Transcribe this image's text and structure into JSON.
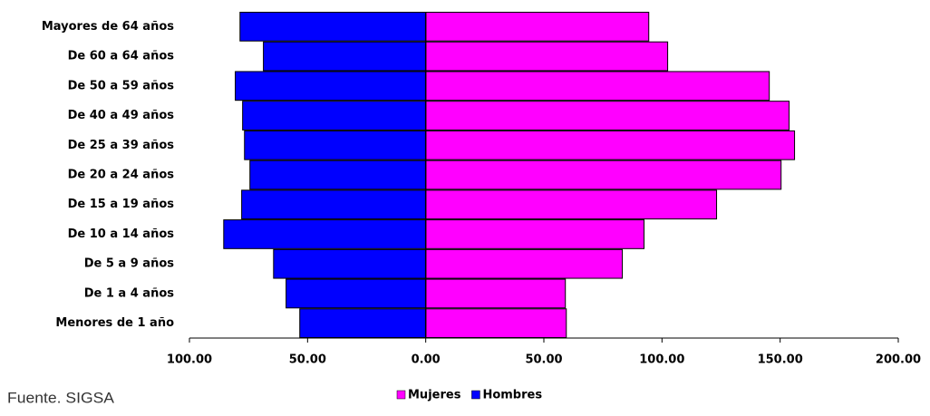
{
  "chart_data": {
    "type": "bar",
    "orientation": "horizontal",
    "stacked": true,
    "categories": [
      "Mayores de 64 años",
      "De 60 a 64 años",
      "De 50 a 59 años",
      "De 40 a 49 años",
      "De 25 a 39 años",
      "De 20 a 24 años",
      "De 15 a 19 años",
      "De 10 a 14 años",
      "De 5 a 9 años",
      "De 1 a 4 años",
      "Menores de 1 año"
    ],
    "series": [
      {
        "name": "Mujeres",
        "color": "#ff00ff",
        "values": [
          94.4,
          102.4,
          145.4,
          153.8,
          156.1,
          150.4,
          123.1,
          92.4,
          83.2,
          59.1,
          59.5
        ]
      },
      {
        "name": "Hombres",
        "color": "#0000ff",
        "values": [
          -78.6,
          -68.7,
          -80.6,
          -77.5,
          -76.7,
          -74.4,
          -77.9,
          -85.5,
          -64.4,
          -59.1,
          -53.3
        ]
      }
    ],
    "xlim": [
      -100,
      200
    ],
    "xticks": [
      {
        "value": -100,
        "label": "100.00"
      },
      {
        "value": -50,
        "label": "50.00"
      },
      {
        "value": 0,
        "label": "0.00"
      },
      {
        "value": 50,
        "label": "50.00"
      },
      {
        "value": 100,
        "label": "100.00"
      },
      {
        "value": 150,
        "label": "150.00"
      },
      {
        "value": 200,
        "label": "200.00"
      }
    ],
    "legend": "bottom",
    "source": "Fuente. SIGSA"
  }
}
